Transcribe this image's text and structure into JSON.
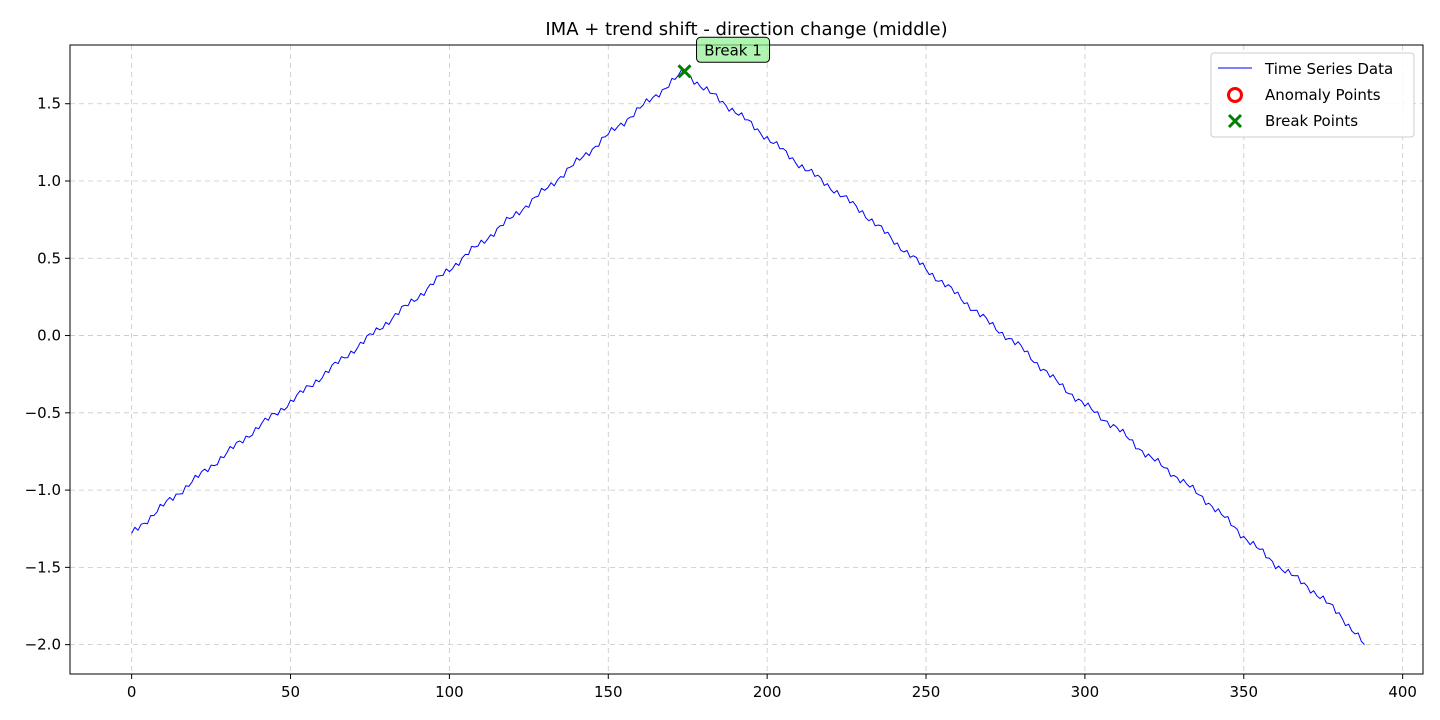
{
  "chart_data": {
    "type": "line",
    "title": "IMA + trend shift - direction change (middle)",
    "xlabel": "",
    "ylabel": "",
    "xlim": [
      -19.4,
      406.4
    ],
    "ylim": [
      -2.19,
      1.88
    ],
    "xticks": [
      0,
      50,
      100,
      150,
      200,
      250,
      300,
      350,
      400
    ],
    "xtick_labels": [
      "0",
      "50",
      "100",
      "150",
      "200",
      "250",
      "300",
      "350",
      "400"
    ],
    "yticks": [
      -2.0,
      -1.5,
      -1.0,
      -0.5,
      0.0,
      0.5,
      1.0,
      1.5
    ],
    "ytick_labels": [
      "−2.0",
      "−1.5",
      "−1.0",
      "−0.5",
      "0.0",
      "0.5",
      "1.0",
      "1.5"
    ],
    "grid": true,
    "legend_position": "upper-right",
    "series": [
      {
        "name": "Time Series Data",
        "color": "#0000ff",
        "x": [
          0,
          10,
          20,
          30,
          40,
          50,
          60,
          70,
          80,
          90,
          100,
          110,
          120,
          130,
          140,
          150,
          160,
          170,
          174,
          180,
          190,
          200,
          210,
          220,
          230,
          240,
          250,
          260,
          270,
          280,
          290,
          300,
          310,
          320,
          330,
          340,
          350,
          360,
          370,
          380,
          388
        ],
        "y": [
          -1.28,
          -1.1,
          -0.93,
          -0.76,
          -0.59,
          -0.43,
          -0.26,
          -0.09,
          0.08,
          0.25,
          0.43,
          0.6,
          0.77,
          0.94,
          1.12,
          1.3,
          1.47,
          1.64,
          1.71,
          1.6,
          1.45,
          1.28,
          1.11,
          0.96,
          0.8,
          0.61,
          0.43,
          0.26,
          0.08,
          -0.08,
          -0.28,
          -0.45,
          -0.6,
          -0.78,
          -0.93,
          -1.1,
          -1.3,
          -1.48,
          -1.62,
          -1.8,
          -2.0
        ]
      }
    ],
    "anomaly_points": {
      "name": "Anomaly Points",
      "color": "#ff0000",
      "x": [],
      "y": []
    },
    "break_points": {
      "name": "Break Points",
      "color": "#008000",
      "x": [
        174
      ],
      "y": [
        1.71
      ],
      "labels": [
        "Break 1"
      ]
    }
  }
}
